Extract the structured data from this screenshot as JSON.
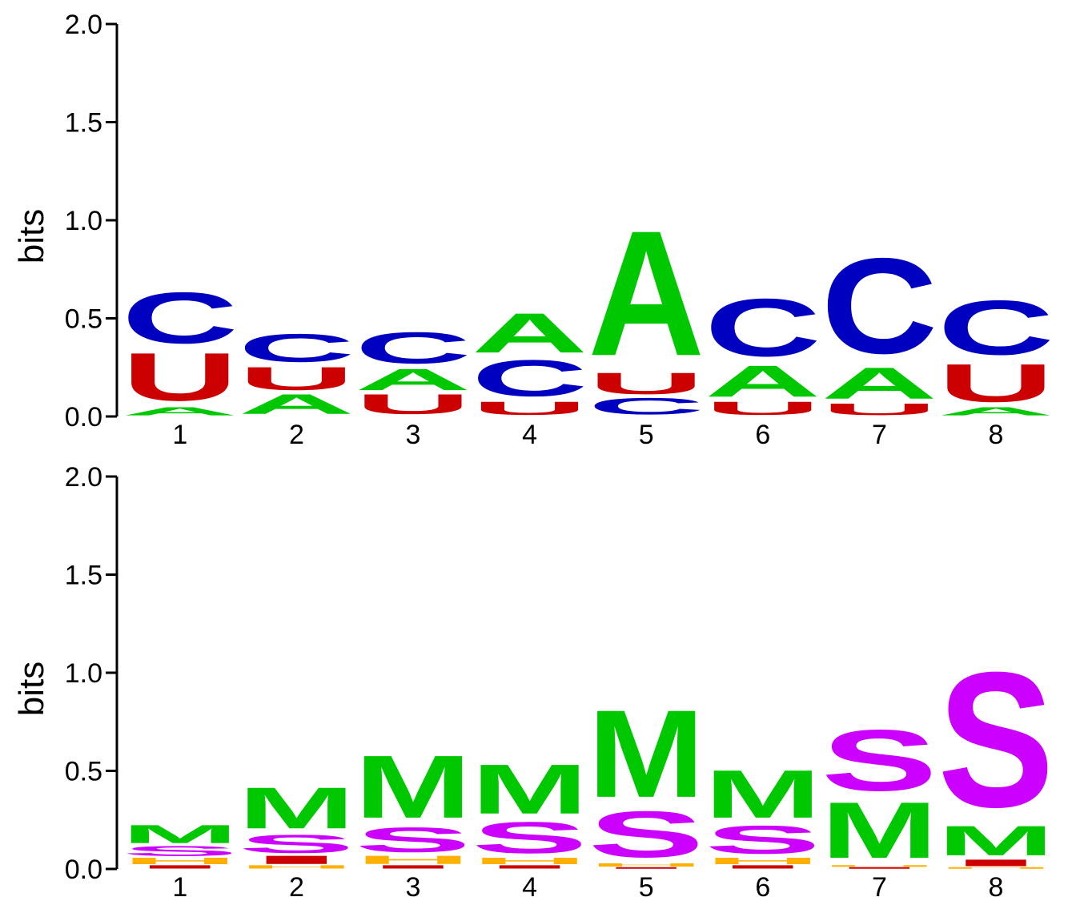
{
  "chart_data": [
    {
      "type": "sequence-logo",
      "ylabel": "bits",
      "ylim": [
        0,
        2.0
      ],
      "yticks": [
        "0.0",
        "0.5",
        "1.0",
        "1.5",
        "2.0"
      ],
      "positions": [
        "1",
        "2",
        "3",
        "4",
        "5",
        "6",
        "7",
        "8"
      ],
      "colors": {
        "A": "#00c800",
        "C": "#0000c0",
        "U": "#cc0000"
      },
      "stacks": [
        [
          {
            "letter": "A",
            "bits": 0.05
          },
          {
            "letter": "U",
            "bits": 0.29
          },
          {
            "letter": "C",
            "bits": 0.31
          }
        ],
        [
          {
            "letter": "A",
            "bits": 0.12
          },
          {
            "letter": "U",
            "bits": 0.14
          },
          {
            "letter": "C",
            "bits": 0.17
          }
        ],
        [
          {
            "letter": "U",
            "bits": 0.12
          },
          {
            "letter": "A",
            "bits": 0.13
          },
          {
            "letter": "C",
            "bits": 0.19
          }
        ],
        [
          {
            "letter": "U",
            "bits": 0.08
          },
          {
            "letter": "C",
            "bits": 0.22
          },
          {
            "letter": "A",
            "bits": 0.24
          }
        ],
        [
          {
            "letter": "C",
            "bits": 0.1
          },
          {
            "letter": "U",
            "bits": 0.13
          },
          {
            "letter": "A",
            "bits": 0.76
          }
        ],
        [
          {
            "letter": "U",
            "bits": 0.08
          },
          {
            "letter": "A",
            "bits": 0.19
          },
          {
            "letter": "C",
            "bits": 0.35
          }
        ],
        [
          {
            "letter": "U",
            "bits": 0.07
          },
          {
            "letter": "A",
            "bits": 0.19
          },
          {
            "letter": "C",
            "bits": 0.58
          }
        ],
        [
          {
            "letter": "A",
            "bits": 0.05
          },
          {
            "letter": "U",
            "bits": 0.23
          },
          {
            "letter": "C",
            "bits": 0.33
          }
        ]
      ]
    },
    {
      "type": "sequence-logo",
      "ylabel": "bits",
      "ylim": [
        0,
        2.0
      ],
      "yticks": [
        "0.0",
        "0.5",
        "1.0",
        "1.5",
        "2.0"
      ],
      "positions": [
        "1",
        "2",
        "3",
        "4",
        "5",
        "6",
        "7",
        "8"
      ],
      "colors": {
        "M": "#00c800",
        "S": "#cc00ff",
        "H": "#ffb000",
        "I": "#cc0000"
      },
      "stacks": [
        [
          {
            "letter": "I",
            "bits": 0.02
          },
          {
            "letter": "H",
            "bits": 0.04
          },
          {
            "letter": "S",
            "bits": 0.06
          },
          {
            "letter": "M",
            "bits": 0.11
          }
        ],
        [
          {
            "letter": "H",
            "bits": 0.02
          },
          {
            "letter": "I",
            "bits": 0.05
          },
          {
            "letter": "S",
            "bits": 0.11
          },
          {
            "letter": "M",
            "bits": 0.25
          }
        ],
        [
          {
            "letter": "I",
            "bits": 0.02
          },
          {
            "letter": "H",
            "bits": 0.05
          },
          {
            "letter": "S",
            "bits": 0.15
          },
          {
            "letter": "M",
            "bits": 0.38
          }
        ],
        [
          {
            "letter": "I",
            "bits": 0.02
          },
          {
            "letter": "H",
            "bits": 0.04
          },
          {
            "letter": "S",
            "bits": 0.19
          },
          {
            "letter": "M",
            "bits": 0.3
          }
        ],
        [
          {
            "letter": "I",
            "bits": 0.01
          },
          {
            "letter": "H",
            "bits": 0.02
          },
          {
            "letter": "S",
            "bits": 0.28
          },
          {
            "letter": "M",
            "bits": 0.53
          }
        ],
        [
          {
            "letter": "I",
            "bits": 0.02
          },
          {
            "letter": "H",
            "bits": 0.04
          },
          {
            "letter": "S",
            "bits": 0.17
          },
          {
            "letter": "M",
            "bits": 0.29
          }
        ],
        [
          {
            "letter": "I",
            "bits": 0.01
          },
          {
            "letter": "H",
            "bits": 0.01
          },
          {
            "letter": "M",
            "bits": 0.34
          },
          {
            "letter": "S",
            "bits": 0.37
          }
        ],
        [
          {
            "letter": "H",
            "bits": 0.01
          },
          {
            "letter": "I",
            "bits": 0.04
          },
          {
            "letter": "M",
            "bits": 0.18
          },
          {
            "letter": "S",
            "bits": 0.82
          }
        ]
      ]
    }
  ]
}
